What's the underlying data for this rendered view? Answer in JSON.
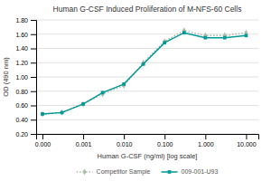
{
  "chart_data": {
    "type": "line",
    "title": "Human G-CSF Induced Proliferation of M-NFS-60 Cells",
    "x_label": "Human G-CSF (ng/ml) [log scale]",
    "y_label": "OD (490 nm)",
    "log": "x",
    "grid": "y",
    "legend": "bottom",
    "x": [
      0.0001,
      0.0003,
      0.001,
      0.003,
      0.01,
      0.03,
      0.1,
      0.3,
      1.0,
      3.0,
      10.0
    ],
    "xlim": [
      7e-05,
      20.0
    ],
    "xticks": [
      {
        "value": 0.0001,
        "label": "0.000"
      },
      0.001,
      {
        "value": 0.01,
        "label": "0.010"
      },
      {
        "value": 0.1,
        "label": "0.100"
      },
      {
        "value": 1.0,
        "label": "1.000"
      },
      {
        "value": 10.0,
        "label": "10.000"
      }
    ],
    "ylim": [
      0.2,
      1.8
    ],
    "yticks": [
      {
        "value": 0.2,
        "label": "0.20"
      },
      {
        "value": 0.4,
        "label": "0.40"
      },
      {
        "value": 0.6,
        "label": "0.60"
      },
      {
        "value": 0.8,
        "label": "0.80"
      },
      {
        "value": 1.0,
        "label": "1.00"
      },
      {
        "value": 1.2,
        "label": "1.20"
      },
      {
        "value": 1.4,
        "label": "1.40"
      },
      {
        "value": 1.6,
        "label": "1.60"
      },
      {
        "value": 1.8,
        "label": "1.80"
      }
    ],
    "series": [
      {
        "name": "Competitor Sample",
        "color": "#aabbaa",
        "marker": "diamond",
        "line_style": "dotted",
        "values": [
          0.48,
          0.5,
          0.62,
          0.76,
          0.88,
          1.2,
          1.5,
          1.65,
          1.58,
          1.58,
          1.62
        ]
      },
      {
        "name": "009-001-U93",
        "color": "#009999",
        "marker": "square",
        "line_style": "solid",
        "values": [
          0.48,
          0.5,
          0.62,
          0.78,
          0.9,
          1.18,
          1.48,
          1.62,
          1.55,
          1.55,
          1.58
        ]
      }
    ]
  }
}
